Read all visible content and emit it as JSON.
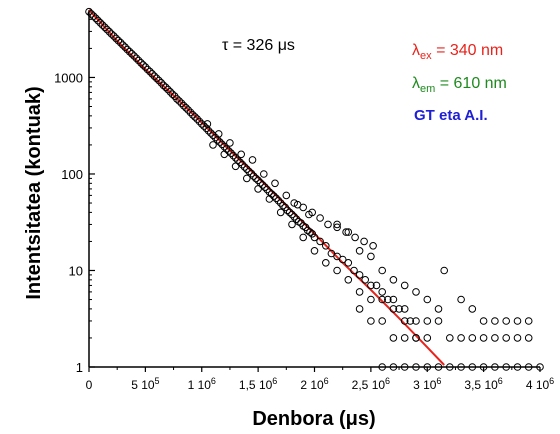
{
  "chart_data": {
    "type": "scatter",
    "annotations": {
      "tau": "τ = 326 μs",
      "lambda_ex": {
        "symbol": "λ",
        "sub": "ex",
        "rest": " = 340 nm",
        "color": "#e8231b"
      },
      "lambda_em": {
        "symbol": "λ",
        "sub": "em",
        "rest": " = 610 nm",
        "color": "#1e8a1e"
      },
      "sample": {
        "text": "GT eta A.I.",
        "color": "#1f1fd6"
      }
    },
    "xlabel": "Denbora (μs)",
    "ylabel": "Intentsitatea (kontuak)",
    "xlim": [
      0,
      4000000
    ],
    "ylim": [
      1,
      6000
    ],
    "yscale": "log",
    "grid": false,
    "x_ticks": [
      {
        "value": 0,
        "mant": "0",
        "exp": ""
      },
      {
        "value": 500000,
        "mant": "5 10",
        "exp": "5"
      },
      {
        "value": 1000000,
        "mant": "1 10",
        "exp": "6"
      },
      {
        "value": 1500000,
        "mant": "1,5 10",
        "exp": "6"
      },
      {
        "value": 2000000,
        "mant": "2 10",
        "exp": "6"
      },
      {
        "value": 2500000,
        "mant": "2,5 10",
        "exp": "6"
      },
      {
        "value": 3000000,
        "mant": "3 10",
        "exp": "6"
      },
      {
        "value": 3500000,
        "mant": "3,5 10",
        "exp": "6"
      },
      {
        "value": 4000000,
        "mant": "4 10",
        "exp": "6"
      }
    ],
    "y_ticks": [
      {
        "value": 1,
        "label": "1"
      },
      {
        "value": 10,
        "label": "10"
      },
      {
        "value": 100,
        "label": "100"
      },
      {
        "value": 1000,
        "label": "1000"
      }
    ],
    "series": [
      {
        "kind": "points",
        "marker": "open-circle",
        "color": "#000000",
        "points": [
          [
            0,
            4800
          ],
          [
            20000,
            4560
          ],
          [
            40000,
            4320
          ],
          [
            60000,
            4100
          ],
          [
            80000,
            3880
          ],
          [
            100000,
            3680
          ],
          [
            120000,
            3490
          ],
          [
            140000,
            3310
          ],
          [
            160000,
            3140
          ],
          [
            180000,
            2980
          ],
          [
            200000,
            2820
          ],
          [
            220000,
            2680
          ],
          [
            240000,
            2540
          ],
          [
            260000,
            2410
          ],
          [
            280000,
            2290
          ],
          [
            300000,
            2170
          ],
          [
            320000,
            2060
          ],
          [
            340000,
            1950
          ],
          [
            360000,
            1850
          ],
          [
            380000,
            1760
          ],
          [
            400000,
            1670
          ],
          [
            420000,
            1580
          ],
          [
            440000,
            1500
          ],
          [
            460000,
            1420
          ],
          [
            480000,
            1350
          ],
          [
            500000,
            1280
          ],
          [
            520000,
            1210
          ],
          [
            540000,
            1150
          ],
          [
            560000,
            1090
          ],
          [
            580000,
            1030
          ],
          [
            600000,
            980
          ],
          [
            620000,
            930
          ],
          [
            640000,
            880
          ],
          [
            660000,
            830
          ],
          [
            680000,
            790
          ],
          [
            700000,
            750
          ],
          [
            720000,
            710
          ],
          [
            740000,
            670
          ],
          [
            760000,
            640
          ],
          [
            780000,
            600
          ],
          [
            800000,
            570
          ],
          [
            820000,
            540
          ],
          [
            840000,
            510
          ],
          [
            860000,
            485
          ],
          [
            880000,
            460
          ],
          [
            900000,
            435
          ],
          [
            920000,
            410
          ],
          [
            940000,
            390
          ],
          [
            960000,
            370
          ],
          [
            980000,
            350
          ],
          [
            1000000,
            330
          ],
          [
            1020000,
            313
          ],
          [
            1040000,
            297
          ],
          [
            1060000,
            281
          ],
          [
            1080000,
            266
          ],
          [
            1100000,
            252
          ],
          [
            1120000,
            239
          ],
          [
            1140000,
            226
          ],
          [
            1160000,
            214
          ],
          [
            1180000,
            203
          ],
          [
            1200000,
            192
          ],
          [
            1220000,
            182
          ],
          [
            1240000,
            173
          ],
          [
            1260000,
            164
          ],
          [
            1280000,
            155
          ],
          [
            1300000,
            147
          ],
          [
            1320000,
            139
          ],
          [
            1340000,
            132
          ],
          [
            1360000,
            125
          ],
          [
            1380000,
            118
          ],
          [
            1400000,
            112
          ],
          [
            1420000,
            106
          ],
          [
            1440000,
            101
          ],
          [
            1460000,
            95
          ],
          [
            1480000,
            90
          ],
          [
            1500000,
            86
          ],
          [
            1520000,
            81
          ],
          [
            1540000,
            77
          ],
          [
            1560000,
            73
          ],
          [
            1580000,
            69
          ],
          [
            1600000,
            65
          ],
          [
            1620000,
            62
          ],
          [
            1640000,
            59
          ],
          [
            1660000,
            56
          ],
          [
            1680000,
            53
          ],
          [
            1700000,
            50
          ],
          [
            1720000,
            47
          ],
          [
            1740000,
            45
          ],
          [
            1760000,
            42
          ],
          [
            1780000,
            40
          ],
          [
            1800000,
            38
          ],
          [
            1820000,
            36
          ],
          [
            1840000,
            34
          ],
          [
            1860000,
            32
          ],
          [
            1880000,
            31
          ],
          [
            1900000,
            29
          ],
          [
            1920000,
            28
          ],
          [
            1940000,
            26
          ],
          [
            1960000,
            25
          ],
          [
            1980000,
            24
          ],
          [
            2000000,
            22
          ],
          [
            1050000,
            330
          ],
          [
            1150000,
            260
          ],
          [
            1250000,
            210
          ],
          [
            1350000,
            160
          ],
          [
            1450000,
            140
          ],
          [
            1550000,
            100
          ],
          [
            1650000,
            80
          ],
          [
            1750000,
            60
          ],
          [
            1850000,
            48
          ],
          [
            1950000,
            38
          ],
          [
            1100000,
            200
          ],
          [
            1200000,
            160
          ],
          [
            1300000,
            120
          ],
          [
            1400000,
            90
          ],
          [
            1500000,
            70
          ],
          [
            1600000,
            55
          ],
          [
            1700000,
            40
          ],
          [
            1800000,
            30
          ],
          [
            1900000,
            22
          ],
          [
            2000000,
            16
          ],
          [
            1820000,
            50
          ],
          [
            1900000,
            45
          ],
          [
            1980000,
            40
          ],
          [
            2050000,
            35
          ],
          [
            2120000,
            30
          ],
          [
            2200000,
            28
          ],
          [
            2280000,
            25
          ],
          [
            2360000,
            22
          ],
          [
            2440000,
            20
          ],
          [
            2520000,
            18
          ],
          [
            2050000,
            20
          ],
          [
            2100000,
            18
          ],
          [
            2150000,
            15
          ],
          [
            2200000,
            14
          ],
          [
            2250000,
            13
          ],
          [
            2300000,
            12
          ],
          [
            2350000,
            10
          ],
          [
            2400000,
            9
          ],
          [
            2450000,
            8
          ],
          [
            2500000,
            7
          ],
          [
            2550000,
            7
          ],
          [
            2600000,
            6
          ],
          [
            2650000,
            5
          ],
          [
            2700000,
            5
          ],
          [
            2750000,
            4
          ],
          [
            2800000,
            4
          ],
          [
            2850000,
            3
          ],
          [
            2900000,
            3
          ],
          [
            2100000,
            12
          ],
          [
            2200000,
            10
          ],
          [
            2300000,
            8
          ],
          [
            2400000,
            6
          ],
          [
            2500000,
            5
          ],
          [
            2600000,
            5
          ],
          [
            2700000,
            4
          ],
          [
            2800000,
            3
          ],
          [
            2900000,
            2
          ],
          [
            3000000,
            2
          ],
          [
            2200000,
            30
          ],
          [
            2300000,
            25
          ],
          [
            2400000,
            16
          ],
          [
            2500000,
            14
          ],
          [
            2600000,
            10
          ],
          [
            2700000,
            8
          ],
          [
            2800000,
            7
          ],
          [
            2900000,
            6
          ],
          [
            3000000,
            5
          ],
          [
            3100000,
            4
          ],
          [
            2400000,
            4
          ],
          [
            2500000,
            3
          ],
          [
            2600000,
            3
          ],
          [
            2700000,
            2
          ],
          [
            2800000,
            2
          ],
          [
            2900000,
            2
          ],
          [
            3000000,
            3
          ],
          [
            3100000,
            3
          ],
          [
            3200000,
            2
          ],
          [
            3300000,
            2
          ],
          [
            3400000,
            2
          ],
          [
            3500000,
            2
          ],
          [
            3600000,
            2
          ],
          [
            3700000,
            2
          ],
          [
            3800000,
            2
          ],
          [
            3900000,
            2
          ],
          [
            3150000,
            10
          ],
          [
            3300000,
            5
          ],
          [
            3400000,
            4
          ],
          [
            3500000,
            3
          ],
          [
            3600000,
            3
          ],
          [
            3700000,
            3
          ],
          [
            3800000,
            3
          ],
          [
            3900000,
            3
          ],
          [
            2600000,
            1
          ],
          [
            2700000,
            1
          ],
          [
            2800000,
            1
          ],
          [
            2900000,
            1
          ],
          [
            3000000,
            1
          ],
          [
            3100000,
            1
          ],
          [
            3200000,
            1
          ],
          [
            3300000,
            1
          ],
          [
            3400000,
            1
          ],
          [
            3500000,
            1
          ],
          [
            3600000,
            1
          ],
          [
            3700000,
            1
          ],
          [
            3800000,
            1
          ],
          [
            3900000,
            1
          ],
          [
            4000000,
            1
          ]
        ]
      },
      {
        "kind": "fit-line",
        "color": "#e8231b",
        "tau_us": 326,
        "points": [
          [
            0,
            5000
          ],
          [
            250000,
            2400
          ],
          [
            500000,
            1220
          ],
          [
            750000,
            650
          ],
          [
            1000000,
            340
          ],
          [
            1250000,
            175
          ],
          [
            1500000,
            92
          ],
          [
            1750000,
            47
          ],
          [
            2000000,
            24
          ],
          [
            2250000,
            12
          ],
          [
            2500000,
            6.3
          ],
          [
            2750000,
            3.2
          ],
          [
            3000000,
            1.6
          ],
          [
            3150000,
            1.05
          ]
        ]
      }
    ]
  }
}
